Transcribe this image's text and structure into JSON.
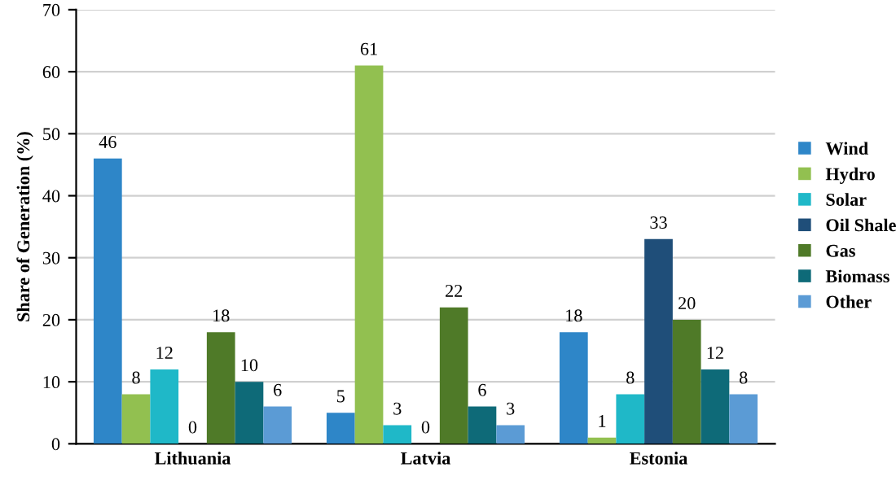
{
  "chart_data": {
    "type": "bar",
    "ylabel": "Share of Generation (%)",
    "categories": [
      "Lithuania",
      "Latvia",
      "Estonia"
    ],
    "series": [
      {
        "name": "Wind",
        "color": "#2e86c8",
        "values": [
          46,
          5,
          18
        ]
      },
      {
        "name": "Hydro",
        "color": "#92c050",
        "values": [
          8,
          61,
          1
        ]
      },
      {
        "name": "Solar",
        "color": "#1fb8c8",
        "values": [
          12,
          3,
          8
        ]
      },
      {
        "name": "Oil Shale",
        "color": "#1f4e79",
        "values": [
          0,
          0,
          33
        ]
      },
      {
        "name": "Gas",
        "color": "#4f7a28",
        "values": [
          18,
          22,
          20
        ]
      },
      {
        "name": "Biomass",
        "color": "#0e6a78",
        "values": [
          10,
          6,
          12
        ]
      },
      {
        "name": "Other",
        "color": "#5b9bd5",
        "values": [
          6,
          3,
          8
        ]
      }
    ],
    "ylim": [
      0,
      70
    ],
    "yticks": [
      0,
      10,
      20,
      30,
      40,
      50,
      60,
      70
    ],
    "grid": "y",
    "legend": "right",
    "data_labels": true
  }
}
